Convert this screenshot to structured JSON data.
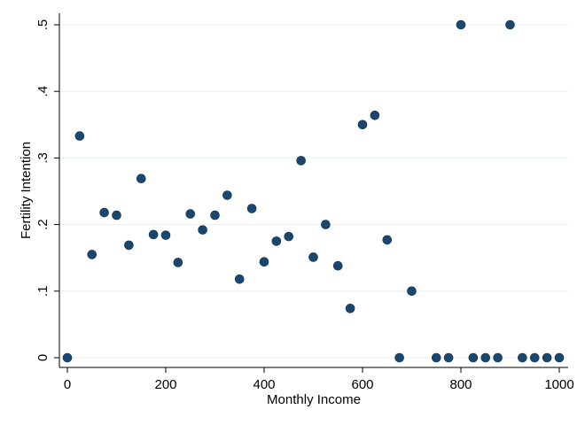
{
  "chart_data": {
    "type": "scatter",
    "xlabel": "Monthly Income",
    "ylabel": "Fertility Intention",
    "xlim": [
      0,
      1000
    ],
    "ylim": [
      0,
      0.5
    ],
    "xticks": [
      0,
      200,
      400,
      600,
      800,
      1000
    ],
    "xtick_labels": [
      "0",
      "200",
      "400",
      "600",
      "800",
      "1000"
    ],
    "yticks": [
      0,
      0.1,
      0.2,
      0.3,
      0.4,
      0.5
    ],
    "ytick_labels": [
      "0",
      ".1",
      ".2",
      ".3",
      ".4",
      ".5"
    ],
    "grid": "horizontal",
    "colors": {
      "background": "#ffffff",
      "plot_background": "#ffffff",
      "grid": "#eaf2f3",
      "marker": "#1a476f",
      "axis": "#000000"
    },
    "x": [
      0,
      25,
      50,
      75,
      100,
      125,
      150,
      175,
      200,
      225,
      250,
      275,
      300,
      325,
      350,
      375,
      400,
      425,
      450,
      475,
      500,
      525,
      550,
      575,
      600,
      625,
      650,
      675,
      700,
      750,
      775,
      800,
      825,
      850,
      875,
      900,
      925,
      950,
      975,
      1000
    ],
    "y": [
      0,
      0.333,
      0.155,
      0.218,
      0.214,
      0.169,
      0.269,
      0.185,
      0.184,
      0.143,
      0.216,
      0.192,
      0.214,
      0.244,
      0.118,
      0.224,
      0.144,
      0.175,
      0.182,
      0.296,
      0.151,
      0.2,
      0.138,
      0.074,
      0.35,
      0.364,
      0.177,
      0,
      0.1,
      0,
      0,
      0.5,
      0,
      0,
      0,
      0.5,
      0,
      0,
      0,
      0
    ]
  }
}
